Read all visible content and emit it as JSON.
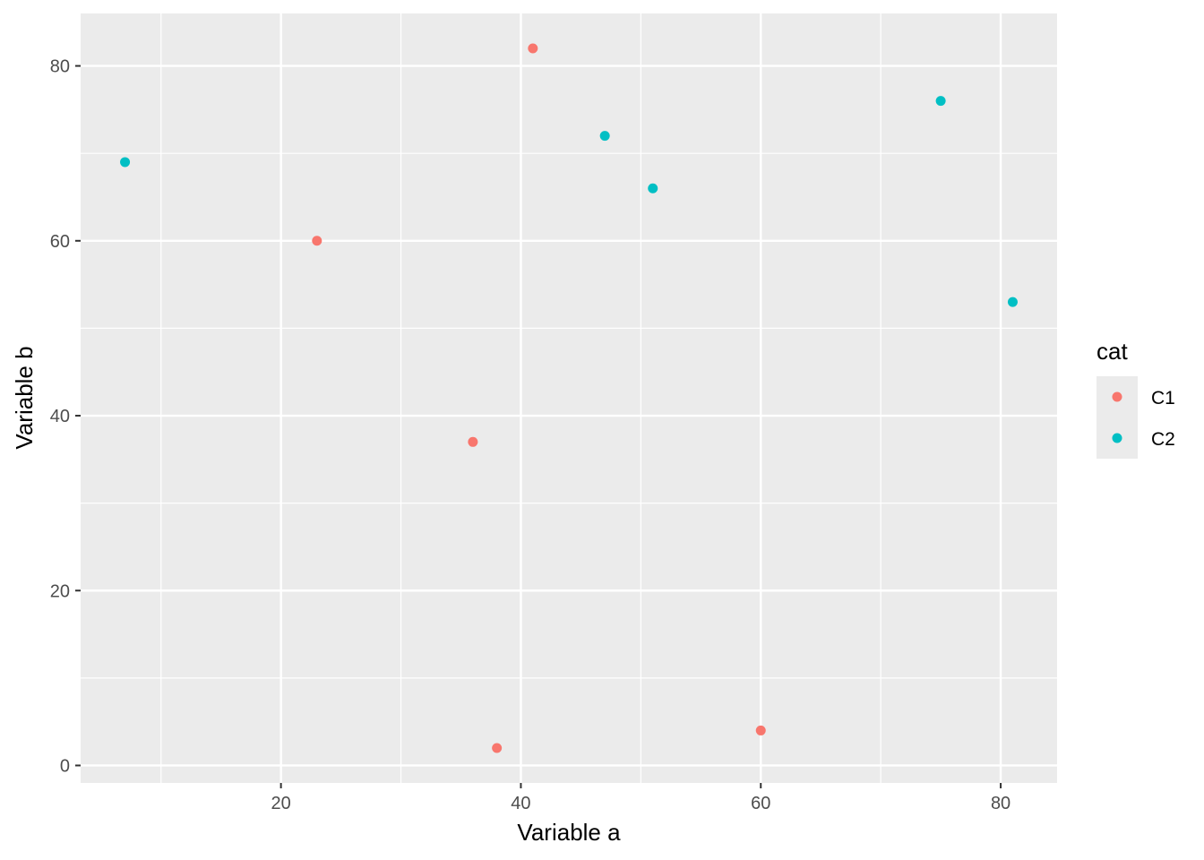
{
  "chart_data": {
    "type": "scatter",
    "xlabel": "Variable a",
    "ylabel": "Variable b",
    "xlim": [
      3.3,
      84.7
    ],
    "ylim": [
      -2.0,
      86.0
    ],
    "x_ticks": [
      20,
      40,
      60,
      80
    ],
    "y_ticks": [
      0,
      20,
      40,
      60,
      80
    ],
    "x_tick_labels": [
      "20",
      "40",
      "60",
      "80"
    ],
    "y_tick_labels": [
      "0",
      "20",
      "40",
      "60",
      "80"
    ],
    "grid": true,
    "legend": {
      "title": "cat",
      "placement": "right"
    },
    "series": [
      {
        "name": "C1",
        "color": "#F8766D",
        "x": [
          41,
          23,
          36,
          38,
          60
        ],
        "y": [
          82,
          60,
          37,
          2,
          4
        ]
      },
      {
        "name": "C2",
        "color": "#00BFC4",
        "x": [
          7,
          47,
          51,
          75,
          81
        ],
        "y": [
          69,
          72,
          66,
          76,
          53
        ]
      }
    ],
    "panel_background": "#EBEBEB",
    "grid_color": "#FFFFFF"
  }
}
